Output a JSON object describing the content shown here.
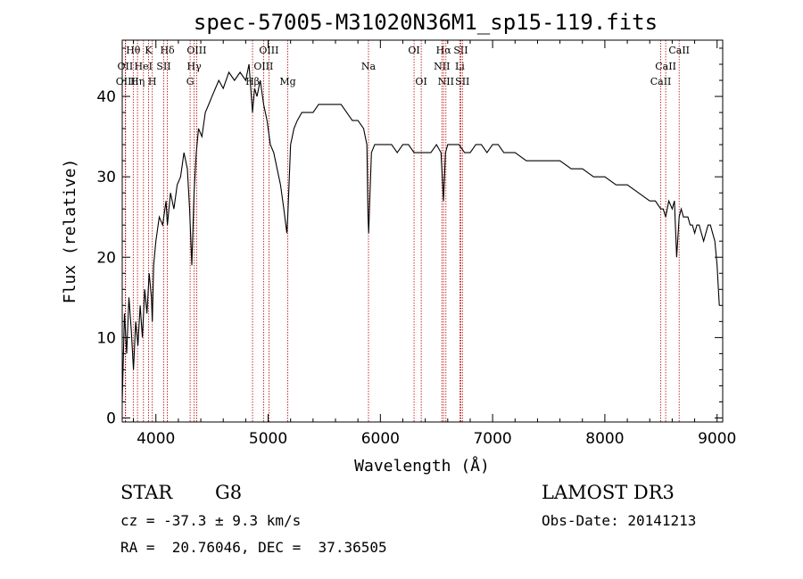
{
  "chart_data": {
    "type": "line",
    "title": "spec-57005-M31020N36M1_sp15-119.fits",
    "xlabel": "Wavelength (Å)",
    "ylabel": "Flux (relative)",
    "xlim": [
      3700,
      9050
    ],
    "ylim": [
      -0.5,
      47
    ],
    "xticks": [
      4000,
      5000,
      6000,
      7000,
      8000,
      9000
    ],
    "yticks": [
      0,
      10,
      20,
      30,
      40
    ],
    "grid": false,
    "series": [
      {
        "x": [
          3700,
          3720,
          3740,
          3760,
          3780,
          3800,
          3820,
          3840,
          3860,
          3880,
          3900,
          3920,
          3940,
          3960,
          3968,
          3980,
          4000,
          4030,
          4060,
          4090,
          4102,
          4130,
          4160,
          4190,
          4220,
          4250,
          4280,
          4300,
          4320,
          4340,
          4360,
          4380,
          4410,
          4440,
          4470,
          4500,
          4530,
          4560,
          4600,
          4650,
          4700,
          4750,
          4800,
          4830,
          4861,
          4880,
          4900,
          4930,
          4960,
          4990,
          5020,
          5050,
          5080,
          5110,
          5140,
          5167,
          5175,
          5183,
          5200,
          5230,
          5260,
          5300,
          5350,
          5400,
          5450,
          5500,
          5550,
          5600,
          5650,
          5700,
          5750,
          5800,
          5850,
          5880,
          5890,
          5896,
          5905,
          5920,
          5950,
          6000,
          6050,
          6100,
          6150,
          6200,
          6250,
          6300,
          6350,
          6400,
          6450,
          6500,
          6540,
          6563,
          6580,
          6600,
          6650,
          6700,
          6750,
          6800,
          6850,
          6900,
          6950,
          7000,
          7050,
          7100,
          7150,
          7200,
          7300,
          7400,
          7500,
          7600,
          7700,
          7800,
          7900,
          8000,
          8100,
          8200,
          8300,
          8400,
          8450,
          8498,
          8520,
          8542,
          8570,
          8600,
          8620,
          8640,
          8662,
          8680,
          8700,
          8720,
          8740,
          8760,
          8780,
          8800,
          8820,
          8840,
          8860,
          8880,
          8900,
          8920,
          8940,
          8960,
          8980,
          9000,
          9020
        ],
        "y": [
          2,
          13,
          8,
          15,
          11,
          6,
          12,
          9,
          14,
          10,
          16,
          13,
          18,
          15,
          12,
          19,
          22,
          25,
          24,
          27,
          24,
          28,
          26,
          29,
          30,
          33,
          31,
          26,
          19,
          28,
          33,
          36,
          35,
          38,
          39,
          40,
          41,
          42,
          41,
          43,
          42,
          43,
          42,
          44,
          38,
          41,
          40,
          42,
          39,
          37,
          34,
          33,
          31,
          29,
          26,
          23,
          25,
          28,
          34,
          36,
          37,
          38,
          38,
          38,
          39,
          39,
          39,
          39,
          39,
          38,
          37,
          37,
          36,
          34,
          25,
          23,
          27,
          33,
          34,
          34,
          34,
          34,
          33,
          34,
          34,
          33,
          33,
          33,
          33,
          34,
          33,
          27,
          33,
          34,
          34,
          34,
          33,
          33,
          34,
          34,
          33,
          34,
          34,
          33,
          33,
          33,
          32,
          32,
          32,
          32,
          31,
          31,
          30,
          30,
          29,
          29,
          28,
          27,
          27,
          26,
          26,
          25,
          27,
          26,
          27,
          20,
          25,
          26,
          25,
          25,
          25,
          24,
          24,
          23,
          24,
          24,
          23,
          22,
          23,
          24,
          24,
          23,
          22,
          19,
          14
        ]
      }
    ],
    "lines": [
      {
        "label": "Hθ",
        "w": 3798,
        "row": 0
      },
      {
        "label": "OII",
        "w": 3727,
        "row": 1
      },
      {
        "label": "OIII",
        "w": 3730,
        "row": 2
      },
      {
        "label": "K",
        "w": 3934,
        "row": 0
      },
      {
        "label": "HeI",
        "w": 3889,
        "row": 1
      },
      {
        "label": "Hη",
        "w": 3836,
        "row": 2
      },
      {
        "label": "SII",
        "w": 4070,
        "row": 1
      },
      {
        "label": "H",
        "w": 3968,
        "row": 2
      },
      {
        "label": "Hδ",
        "w": 4102,
        "row": 0
      },
      {
        "label": "OIII",
        "w": 4363,
        "row": 0
      },
      {
        "label": "Hγ",
        "w": 4341,
        "row": 1
      },
      {
        "label": "G",
        "w": 4305,
        "row": 2
      },
      {
        "label": "OIII",
        "w": 5007,
        "row": 0
      },
      {
        "label": "OIII",
        "w": 4959,
        "row": 1
      },
      {
        "label": "Hβ",
        "w": 4861,
        "row": 2
      },
      {
        "label": "Mg",
        "w": 5175,
        "row": 2
      },
      {
        "label": "Na",
        "w": 5894,
        "row": 1
      },
      {
        "label": "OI",
        "w": 6300,
        "row": 0
      },
      {
        "label": "OI",
        "w": 6364,
        "row": 2
      },
      {
        "label": "Hα",
        "w": 6563,
        "row": 0
      },
      {
        "label": "NII",
        "w": 6548,
        "row": 1
      },
      {
        "label": "NII",
        "w": 6584,
        "row": 2
      },
      {
        "label": "SII",
        "w": 6717,
        "row": 0
      },
      {
        "label": "Li",
        "w": 6708,
        "row": 1
      },
      {
        "label": "SII",
        "w": 6731,
        "row": 2
      },
      {
        "label": "CaII",
        "w": 8662,
        "row": 0
      },
      {
        "label": "CaII",
        "w": 8542,
        "row": 1
      },
      {
        "label": "CaII",
        "w": 8498,
        "row": 2
      }
    ]
  },
  "info": {
    "class": "STAR",
    "subclass": "G8",
    "survey": "LAMOST DR3",
    "cz": "cz = -37.3 ± 9.3 km/s",
    "obs_date": "Obs-Date: 20141213",
    "radec": "RA =  20.76046, DEC =  37.36505"
  }
}
